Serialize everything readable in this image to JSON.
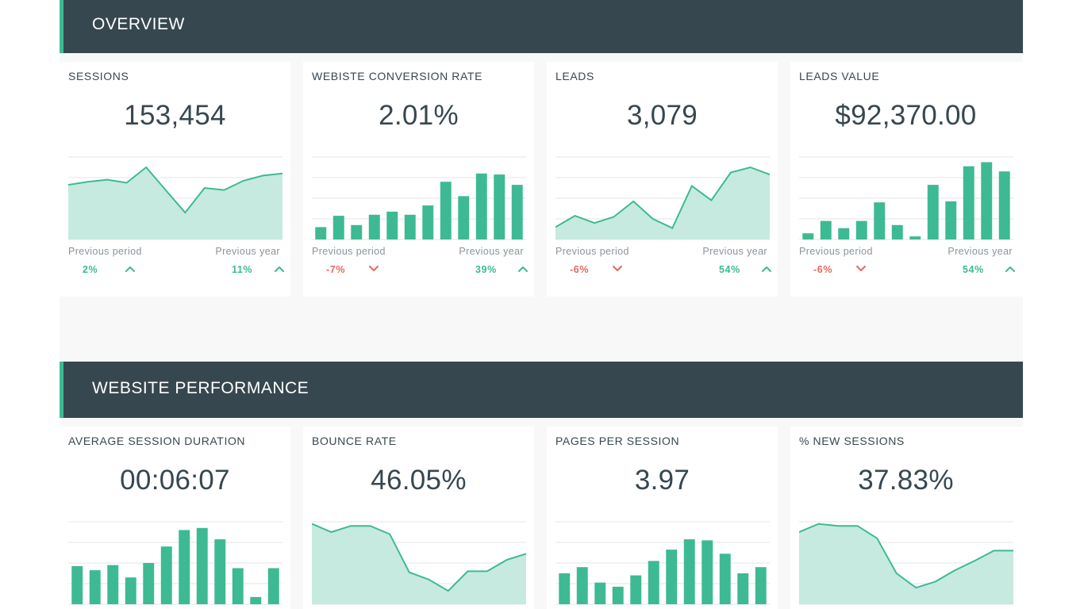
{
  "colors": {
    "header_bg": "#37474f",
    "accent": "#3dba93",
    "negative": "#e26a5e",
    "fill": "#c6eadf"
  },
  "sections": [
    {
      "title": "OVERVIEW",
      "cards": [
        {
          "label": "SESSIONS",
          "value": "153,454",
          "chart": {
            "type": "area",
            "values": [
              53,
              56,
              58,
              55,
              70,
              48,
              26,
              50,
              48,
              57,
              62,
              64
            ],
            "ymax": 80
          },
          "prev_period_label": "Previous period",
          "prev_period_delta": "2%",
          "prev_period_dir": "up",
          "prev_year_label": "Previous year",
          "prev_year_delta": "11%",
          "prev_year_dir": "up"
        },
        {
          "label": "WEBISTE CONVERSION RATE",
          "value": "2.01%",
          "chart": {
            "type": "bar",
            "values": [
              12,
              23,
              14,
              24,
              27,
              24,
              33,
              56,
              42,
              64,
              63,
              53
            ],
            "ymax": 80
          },
          "prev_period_label": "Previous period",
          "prev_period_delta": "-7%",
          "prev_period_dir": "down",
          "prev_year_label": "Previous year",
          "prev_year_delta": "39%",
          "prev_year_dir": "up"
        },
        {
          "label": "LEADS",
          "value": "3,079",
          "chart": {
            "type": "area",
            "values": [
              12,
              23,
              16,
              22,
              37,
              20,
              11,
              52,
              38,
              65,
              70,
              63
            ],
            "ymax": 80
          },
          "prev_period_label": "Previous period",
          "prev_period_delta": "-6%",
          "prev_period_dir": "down",
          "prev_year_label": "Previous year",
          "prev_year_delta": "54%",
          "prev_year_dir": "up"
        },
        {
          "label": "LEADS VALUE",
          "value": "$92,370.00",
          "chart": {
            "type": "bar",
            "values": [
              6,
              18,
              11,
              18,
              36,
              14,
              3,
              53,
              37,
              71,
              75,
              66
            ],
            "ymax": 80
          },
          "prev_period_label": "Previous period",
          "prev_period_delta": "-6%",
          "prev_period_dir": "down",
          "prev_year_label": "Previous year",
          "prev_year_delta": "54%",
          "prev_year_dir": "up"
        }
      ]
    },
    {
      "title": "WEBSITE PERFORMANCE",
      "cards": [
        {
          "label": "AVERAGE SESSION DURATION",
          "value": "00:06:07",
          "chart": {
            "type": "bar",
            "values": [
              37,
              33,
              38,
              26,
              40,
              56,
              72,
              74,
              63,
              35,
              7,
              35
            ],
            "ymax": 80
          },
          "prev_period_label": "",
          "prev_period_delta": "",
          "prev_period_dir": "",
          "prev_year_label": "",
          "prev_year_delta": "",
          "prev_year_dir": ""
        },
        {
          "label": "BOUNCE RATE",
          "value": "46.05%",
          "chart": {
            "type": "area",
            "values": [
              78,
              70,
              76,
              76,
              68,
              31,
              24,
              13,
              32,
              32,
              43,
              49
            ],
            "ymax": 80
          },
          "prev_period_label": "",
          "prev_period_delta": "",
          "prev_period_dir": "",
          "prev_year_label": "",
          "prev_year_delta": "",
          "prev_year_dir": ""
        },
        {
          "label": "PAGES PER SESSION",
          "value": "3.97",
          "chart": {
            "type": "bar",
            "values": [
              30,
              36,
              21,
              17,
              28,
              42,
              53,
              63,
              62,
              49,
              30,
              36
            ],
            "ymax": 80
          },
          "prev_period_label": "",
          "prev_period_delta": "",
          "prev_period_dir": "",
          "prev_year_label": "",
          "prev_year_delta": "",
          "prev_year_dir": ""
        },
        {
          "label": "% NEW SESSIONS",
          "value": "37.83%",
          "chart": {
            "type": "area",
            "values": [
              70,
              78,
              76,
              76,
              64,
              30,
              16,
              22,
              33,
              42,
              52,
              52
            ],
            "ymax": 80
          },
          "prev_period_label": "",
          "prev_period_delta": "",
          "prev_period_dir": "",
          "prev_year_label": "",
          "prev_year_delta": "",
          "prev_year_dir": ""
        }
      ]
    }
  ]
}
